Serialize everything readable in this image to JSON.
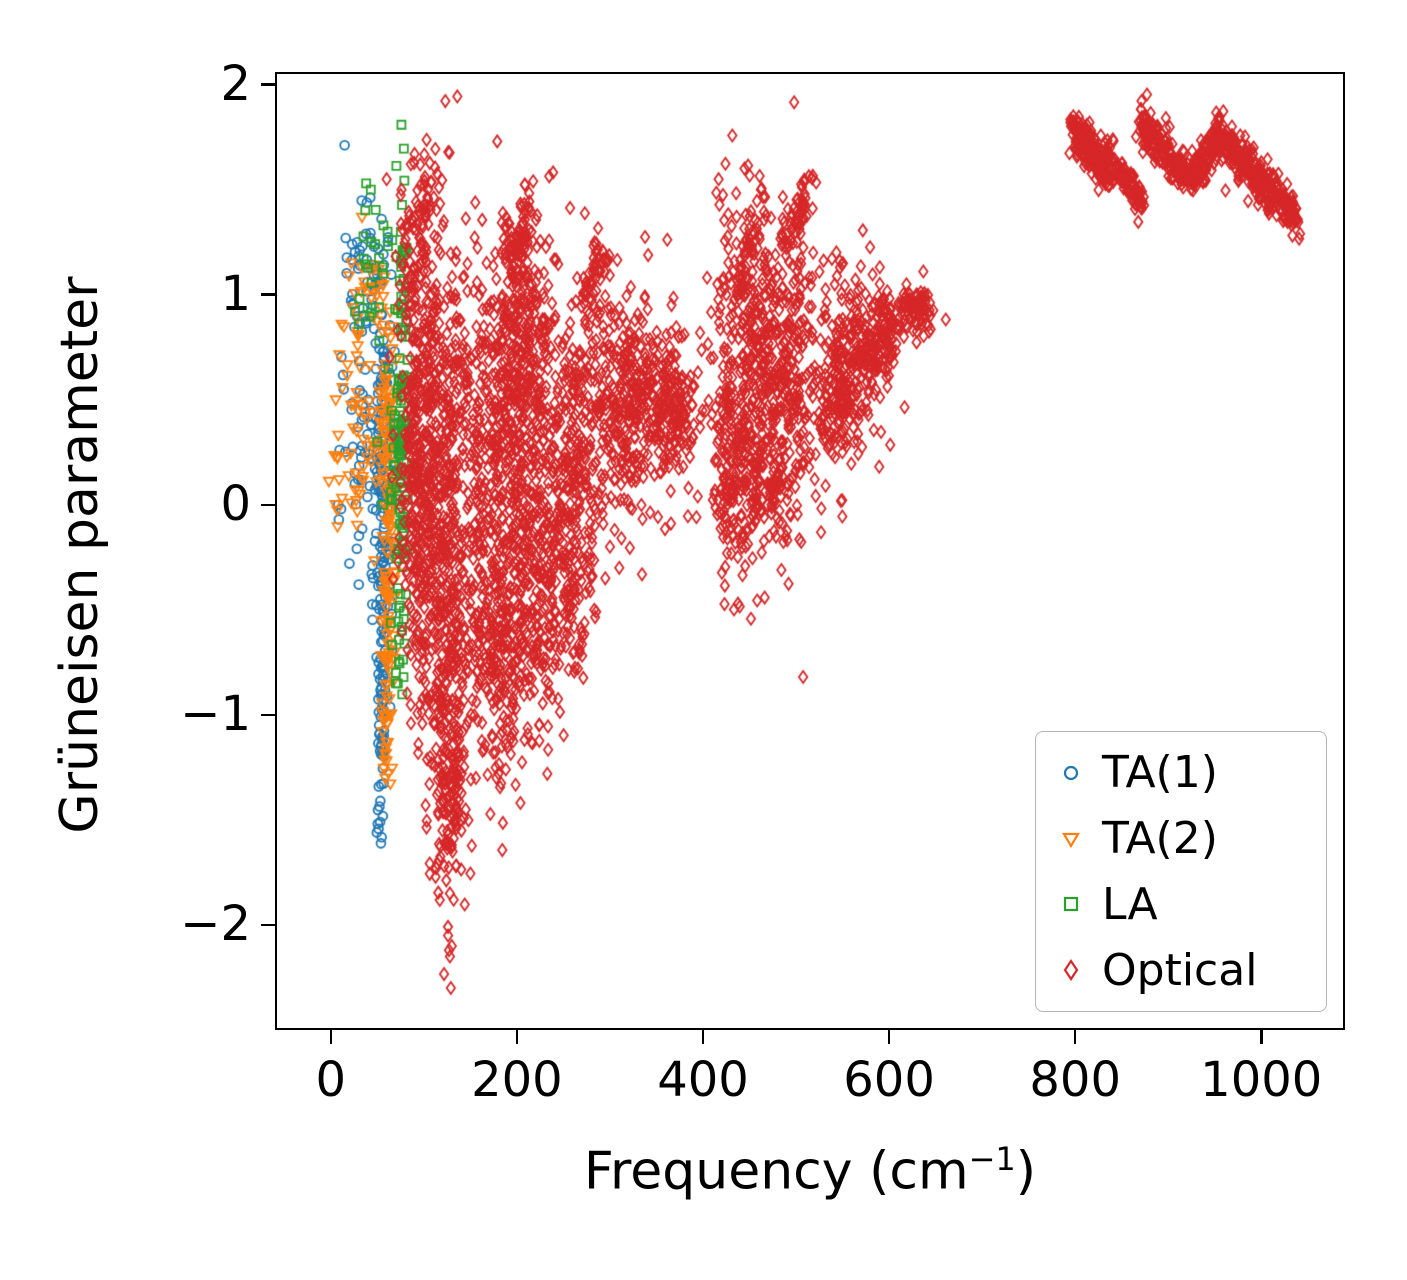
{
  "chart_data": {
    "type": "scatter",
    "title": "",
    "xlabel": "Frequency (cm⁻¹)",
    "xlabel_parts": {
      "main": "Frequency (cm",
      "sup": "−1",
      "end": ")"
    },
    "ylabel": "Grüneisen parameter",
    "xlim": [
      -60,
      1090
    ],
    "ylim": [
      -2.5,
      2.06
    ],
    "xticks": {
      "values": [
        0,
        200,
        400,
        600,
        800,
        1000
      ],
      "labels": [
        "0",
        "200",
        "400",
        "600",
        "800",
        "1000"
      ]
    },
    "yticks": {
      "values": [
        2,
        1,
        0,
        -1,
        -2
      ],
      "labels": [
        "2",
        "1",
        "0",
        "−1",
        "−2"
      ]
    },
    "grid": false,
    "legend_position": "lower right",
    "series": [
      {
        "name": "TA(1)",
        "marker": "circle",
        "color": "#1f77b4",
        "clusters": [
          {
            "t": "g",
            "cx": 57,
            "cy": 0.35,
            "sx": 5,
            "sy": 0.42,
            "n": 110
          },
          {
            "t": "g",
            "cx": 56,
            "cy": -0.5,
            "sx": 4,
            "sy": 0.3,
            "n": 55
          },
          {
            "t": "g",
            "cx": 55,
            "cy": -1.02,
            "sx": 2.5,
            "sy": 0.16,
            "n": 40
          },
          {
            "t": "g",
            "cx": 32,
            "cy": 0.8,
            "sx": 13,
            "sy": 0.32,
            "n": 50
          },
          {
            "t": "g",
            "cx": 36,
            "cy": 0.15,
            "sx": 12,
            "sy": 0.25,
            "n": 28
          },
          {
            "t": "g",
            "cx": 53,
            "cy": -1.5,
            "sx": 2,
            "sy": 0.07,
            "n": 10
          },
          {
            "t": "g",
            "cx": 45,
            "cy": 1.15,
            "sx": 10,
            "sy": 0.1,
            "n": 18
          }
        ],
        "points": [
          [
            8,
            0.0
          ],
          [
            11,
            -0.02
          ],
          [
            20,
            -0.28
          ],
          [
            16,
            1.27
          ],
          [
            23,
            1.24
          ],
          [
            30,
            -0.38
          ],
          [
            44,
            -0.33
          ],
          [
            40,
            0.5
          ]
        ]
      },
      {
        "name": "TA(2)",
        "marker": "triangle-down",
        "color": "#ff7f0e",
        "clusters": [
          {
            "t": "g",
            "cx": 61,
            "cy": 0.3,
            "sx": 5,
            "sy": 0.38,
            "n": 85
          },
          {
            "t": "g",
            "cx": 62,
            "cy": -0.5,
            "sx": 4,
            "sy": 0.28,
            "n": 45
          },
          {
            "t": "g",
            "cx": 61,
            "cy": -1.0,
            "sx": 3,
            "sy": 0.16,
            "n": 28
          },
          {
            "t": "g",
            "cx": 30,
            "cy": 0.22,
            "sx": 14,
            "sy": 0.2,
            "n": 45
          },
          {
            "t": "g",
            "cx": 26,
            "cy": 0.7,
            "sx": 11,
            "sy": 0.22,
            "n": 25
          },
          {
            "t": "g",
            "cx": 50,
            "cy": 1.02,
            "sx": 8,
            "sy": 0.08,
            "n": 14
          }
        ],
        "points": [
          [
            62,
            -1.28
          ],
          [
            60,
            -1.22
          ],
          [
            5,
            0.0
          ],
          [
            12,
            0.03
          ],
          [
            42,
            1.12
          ],
          [
            36,
            1.06
          ],
          [
            46,
            1.14
          ],
          [
            8,
            0.33
          ]
        ]
      },
      {
        "name": "LA",
        "marker": "square",
        "color": "#2ca02c",
        "clusters": [
          {
            "t": "g",
            "cx": 77,
            "cy": 0.55,
            "sx": 2.5,
            "sy": 0.45,
            "n": 95
          },
          {
            "t": "g",
            "cx": 71,
            "cy": 0.15,
            "sx": 5,
            "sy": 0.28,
            "n": 30
          },
          {
            "t": "g",
            "cx": 46,
            "cy": 1.12,
            "sx": 11,
            "sy": 0.2,
            "n": 22
          },
          {
            "t": "g",
            "cx": 74,
            "cy": -0.5,
            "sx": 3.5,
            "sy": 0.22,
            "n": 20
          }
        ],
        "points": [
          [
            38,
            1.53
          ],
          [
            43,
            1.5
          ],
          [
            30,
            0.86
          ],
          [
            26,
            0.92
          ],
          [
            61,
            1.3
          ],
          [
            66,
            1.26
          ],
          [
            70,
            -0.8
          ],
          [
            72,
            -0.85
          ],
          [
            56,
            0.0
          ],
          [
            50,
            0.3
          ]
        ]
      },
      {
        "name": "Optical",
        "marker": "diamond",
        "color": "#d62728",
        "clusters": [
          {
            "t": "g",
            "cx": 95,
            "cy": 0.6,
            "sx": 10,
            "sy": 0.5,
            "n": 240
          },
          {
            "t": "g",
            "cx": 95,
            "cy": -0.2,
            "sx": 9,
            "sy": 0.4,
            "n": 170
          },
          {
            "t": "b",
            "x1": 85,
            "y1": 1.25,
            "x2": 112,
            "y2": 1.58,
            "jx": 6,
            "jy": 0.1,
            "n": 45
          },
          {
            "t": "g",
            "cx": 125,
            "cy": 0.3,
            "sx": 15,
            "sy": 0.55,
            "n": 300
          },
          {
            "t": "g",
            "cx": 125,
            "cy": -0.8,
            "sx": 12,
            "sy": 0.45,
            "n": 260
          },
          {
            "t": "g",
            "cx": 130,
            "cy": -1.35,
            "sx": 10,
            "sy": 0.18,
            "n": 70
          },
          {
            "t": "g",
            "cx": 175,
            "cy": 0.2,
            "sx": 20,
            "sy": 0.5,
            "n": 340
          },
          {
            "t": "g",
            "cx": 180,
            "cy": -0.7,
            "sx": 18,
            "sy": 0.33,
            "n": 230
          },
          {
            "t": "g",
            "cx": 200,
            "cy": 0.9,
            "sx": 14,
            "sy": 0.28,
            "n": 130
          },
          {
            "t": "b",
            "x1": 186,
            "y1": 1.12,
            "x2": 216,
            "y2": 1.38,
            "jx": 5,
            "jy": 0.09,
            "n": 55
          },
          {
            "t": "g",
            "cx": 215,
            "cy": 0.35,
            "sx": 18,
            "sy": 0.45,
            "n": 260
          },
          {
            "t": "g",
            "cx": 226,
            "cy": -0.45,
            "sx": 15,
            "sy": 0.33,
            "n": 170
          },
          {
            "t": "g",
            "cx": 255,
            "cy": 0.3,
            "sx": 18,
            "sy": 0.38,
            "n": 170
          },
          {
            "t": "g",
            "cx": 262,
            "cy": -0.25,
            "sx": 12,
            "sy": 0.28,
            "n": 90
          },
          {
            "t": "g",
            "cx": 255,
            "cy": -0.6,
            "sx": 10,
            "sy": 0.14,
            "n": 35
          },
          {
            "t": "b",
            "x1": 272,
            "y1": 0.96,
            "x2": 296,
            "y2": 1.18,
            "jx": 5,
            "jy": 0.07,
            "n": 50
          },
          {
            "t": "g",
            "cx": 300,
            "cy": 0.45,
            "sx": 20,
            "sy": 0.3,
            "n": 190
          },
          {
            "t": "g",
            "cx": 340,
            "cy": 0.5,
            "sx": 24,
            "sy": 0.24,
            "n": 260
          },
          {
            "t": "g",
            "cx": 367,
            "cy": 0.45,
            "sx": 14,
            "sy": 0.14,
            "n": 90
          },
          {
            "t": "g",
            "cx": 440,
            "cy": 0.55,
            "sx": 18,
            "sy": 0.42,
            "n": 300
          },
          {
            "t": "g",
            "cx": 470,
            "cy": 0.45,
            "sx": 20,
            "sy": 0.38,
            "n": 230
          },
          {
            "t": "g",
            "cx": 497,
            "cy": 0.65,
            "sx": 14,
            "sy": 0.33,
            "n": 170
          },
          {
            "t": "b",
            "x1": 441,
            "y1": 1.1,
            "x2": 463,
            "y2": 1.4,
            "jx": 5,
            "jy": 0.08,
            "n": 45
          },
          {
            "t": "b",
            "x1": 486,
            "y1": 1.28,
            "x2": 512,
            "y2": 1.5,
            "jx": 5,
            "jy": 0.07,
            "n": 50
          },
          {
            "t": "g",
            "cx": 430,
            "cy": 0.0,
            "sx": 9,
            "sy": 0.14,
            "n": 55
          },
          {
            "t": "g",
            "cx": 466,
            "cy": 0.05,
            "sx": 14,
            "sy": 0.11,
            "n": 45
          },
          {
            "t": "g",
            "cx": 546,
            "cy": 0.6,
            "sx": 14,
            "sy": 0.24,
            "n": 160
          },
          {
            "t": "g",
            "cx": 576,
            "cy": 0.75,
            "sx": 14,
            "sy": 0.17,
            "n": 130
          },
          {
            "t": "g",
            "cx": 596,
            "cy": 0.8,
            "sx": 9,
            "sy": 0.11,
            "n": 70
          },
          {
            "t": "b",
            "x1": 530,
            "y1": 0.36,
            "x2": 562,
            "y2": 0.55,
            "jx": 4,
            "jy": 0.08,
            "n": 45
          },
          {
            "t": "g",
            "cx": 626,
            "cy": 0.93,
            "sx": 11,
            "sy": 0.06,
            "n": 90
          },
          {
            "t": "b",
            "x1": 795,
            "y1": 1.8,
            "x2": 843,
            "y2": 1.6,
            "jx": 2,
            "jy": 0.045,
            "n": 140
          },
          {
            "t": "b",
            "x1": 801,
            "y1": 1.71,
            "x2": 838,
            "y2": 1.54,
            "jx": 2,
            "jy": 0.035,
            "n": 70
          },
          {
            "t": "b",
            "x1": 847,
            "y1": 1.6,
            "x2": 872,
            "y2": 1.44,
            "jx": 2,
            "jy": 0.04,
            "n": 80
          },
          {
            "t": "b",
            "x1": 868,
            "y1": 1.84,
            "x2": 918,
            "y2": 1.56,
            "jx": 2,
            "jy": 0.05,
            "n": 160
          },
          {
            "t": "b",
            "x1": 905,
            "y1": 1.63,
            "x2": 928,
            "y2": 1.56,
            "jx": 2,
            "jy": 0.04,
            "n": 55
          },
          {
            "t": "b",
            "x1": 925,
            "y1": 1.57,
            "x2": 955,
            "y2": 1.74,
            "jx": 2,
            "jy": 0.05,
            "n": 95
          },
          {
            "t": "b",
            "x1": 950,
            "y1": 1.78,
            "x2": 1000,
            "y2": 1.55,
            "jx": 2,
            "jy": 0.055,
            "n": 160
          },
          {
            "t": "b",
            "x1": 995,
            "y1": 1.55,
            "x2": 1040,
            "y2": 1.37,
            "jx": 2,
            "jy": 0.05,
            "n": 140
          }
        ],
        "points": [
          [
            90,
            1.67
          ],
          [
            96,
            1.62
          ],
          [
            60,
            1.55
          ],
          [
            76,
            1.5
          ],
          [
            120,
            -1.55
          ],
          [
            125,
            -1.6
          ],
          [
            130,
            -1.62
          ],
          [
            122,
            -1.72
          ],
          [
            128,
            -1.85
          ],
          [
            132,
            -1.88
          ],
          [
            126,
            -2.05
          ],
          [
            130,
            -2.1
          ],
          [
            128,
            -2.15
          ],
          [
            127,
            -2.12
          ],
          [
            129,
            -2.3
          ],
          [
            140,
            -1.5
          ],
          [
            145,
            -1.45
          ],
          [
            156,
            -1.3
          ],
          [
            300,
            -0.2
          ],
          [
            310,
            -0.3
          ],
          [
            305,
            -0.12
          ],
          [
            295,
            -0.35
          ],
          [
            545,
            0.45
          ],
          [
            432,
            -0.15
          ],
          [
            425,
            -0.1
          ]
        ]
      }
    ]
  },
  "colors": {
    "background": "#ffffff",
    "spine": "#000000",
    "legend_border": "#b4b4b4"
  }
}
